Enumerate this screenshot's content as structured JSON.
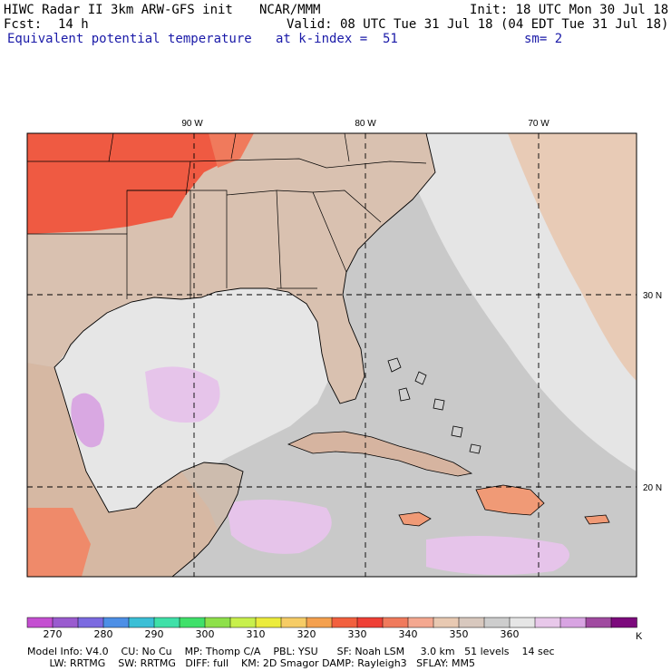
{
  "header": {
    "model_title": "HIWC Radar II 3km ARW-GFS init",
    "org": "NCAR/MMM",
    "init": "Init: 18 UTC Mon 30 Jul 18",
    "fcst_label": "Fcst:",
    "fcst_value": "14 h",
    "valid": "Valid: 08 UTC Tue 31 Jul 18 (04 EDT Tue 31 Jul 18)",
    "field": "Equivalent potential temperature",
    "level": "at k-index =  51",
    "smoothing": "sm= 2"
  },
  "map": {
    "lon_labels": [
      "90 W",
      "80 W",
      "70 W"
    ],
    "lat_labels": [
      "30 N",
      "20 N"
    ],
    "features": [
      "Gulf of Mexico",
      "Florida",
      "Cuba",
      "Bahamas",
      "Hispaniola",
      "Jamaica",
      "Yucatan Peninsula",
      "Southeast United States"
    ]
  },
  "colorbar": {
    "ticks": [
      "270",
      "280",
      "290",
      "300",
      "310",
      "320",
      "330",
      "340",
      "350",
      "360"
    ],
    "unit": "K",
    "colors": [
      "#c44fd1",
      "#9a5bcf",
      "#7b6ae0",
      "#4d8fe6",
      "#3bbfd6",
      "#3fe0a8",
      "#40e06a",
      "#8ee04a",
      "#c8f04c",
      "#ecec3c",
      "#f6cc66",
      "#f4a04e",
      "#f2603e",
      "#ef4036",
      "#f07a5c",
      "#f4a890",
      "#e8c9b2",
      "#d8c8be",
      "#cdcdcd",
      "#e6e6e6",
      "#e8c8ea",
      "#d8a4e2",
      "#a04aa0",
      "#7c0a7c"
    ]
  },
  "footer": {
    "line1": "Model Info: V4.0    CU: No Cu    MP: Thomp C/A    PBL: YSU      SF: Noah LSM     3.0 km   51 levels    14 sec",
    "line2": "       LW: RRTMG    SW: RRTMG   DIFF: full    KM: 2D Smagor DAMP: Rayleigh3   SFLAY: MM5"
  }
}
